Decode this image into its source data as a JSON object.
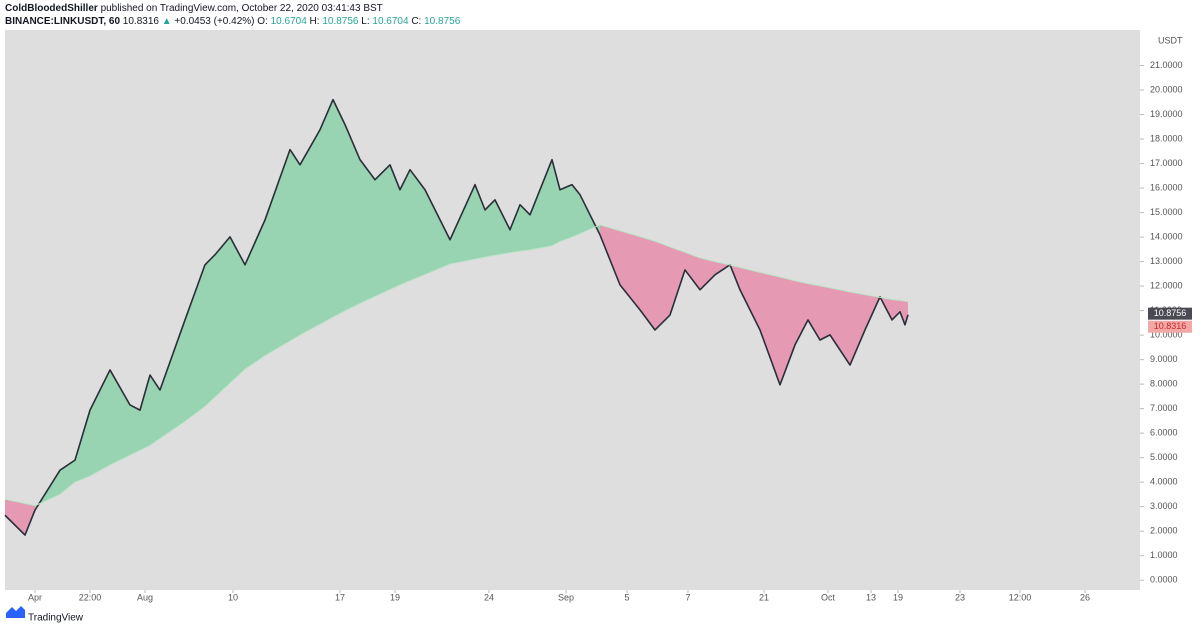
{
  "header": {
    "author": "ColdBloodedShiller",
    "published": "published on TradingView.com, October 22, 2020 03:41:43 BST",
    "footer": "TradingView"
  },
  "chart_data": {
    "type": "line",
    "symbol": "BINANCE:LINKUSDT, 60",
    "last": 10.8316,
    "change": "+0.0453 (+0.42%)",
    "ohlc": [
      {
        "label": "O:",
        "value": 10.6704
      },
      {
        "label": "H:",
        "value": 10.8756
      },
      {
        "label": "L:",
        "value": 10.6704
      },
      {
        "label": "C:",
        "value": 10.8756
      }
    ],
    "y_label": "USDT",
    "x": [
      0,
      20,
      30,
      55,
      70,
      85,
      105,
      125,
      135,
      145,
      155,
      180,
      200,
      210,
      225,
      240,
      260,
      285,
      295,
      315,
      328,
      340,
      355,
      370,
      385,
      395,
      405,
      420,
      445,
      470,
      480,
      490,
      505,
      515,
      525,
      547,
      555,
      567,
      575,
      595,
      615,
      635,
      650,
      665,
      680,
      695,
      710,
      725,
      735,
      755,
      775,
      790,
      803,
      815,
      825,
      845,
      860,
      875,
      887,
      895,
      900,
      903
    ],
    "series": [
      {
        "color": "#2a2e39",
        "values": [
          2.65,
          1.84,
          2.86,
          4.49,
          4.9,
          6.94,
          8.58,
          7.15,
          6.94,
          8.37,
          7.76,
          10.62,
          12.87,
          13.28,
          14.01,
          12.87,
          14.7,
          17.57,
          16.95,
          18.38,
          19.61,
          18.59,
          17.16,
          16.34,
          16.95,
          15.93,
          16.75,
          15.93,
          13.89,
          16.14,
          15.11,
          15.52,
          14.3,
          15.32,
          14.91,
          17.16,
          15.93,
          16.14,
          15.73,
          14.09,
          12.05,
          11.03,
          10.21,
          10.82,
          12.66,
          11.85,
          12.46,
          12.87,
          11.85,
          10.21,
          7.97,
          9.6,
          10.62,
          9.8,
          10.01,
          8.78,
          10.21,
          11.56,
          10.62,
          10.95,
          10.42,
          10.83
        ]
      },
      {
        "color": "#b9e3c6",
        "values": [
          3.3,
          3.13,
          3.04,
          3.5,
          4.0,
          4.25,
          4.7,
          5.1,
          5.3,
          5.5,
          5.78,
          6.48,
          7.09,
          7.47,
          8.04,
          8.61,
          9.16,
          9.76,
          10.0,
          10.44,
          10.73,
          10.99,
          11.29,
          11.58,
          11.86,
          12.05,
          12.22,
          12.47,
          12.9,
          13.1,
          13.18,
          13.26,
          13.36,
          13.42,
          13.48,
          13.64,
          13.82,
          14.0,
          14.14,
          14.5,
          14.26,
          14.02,
          13.83,
          13.6,
          13.38,
          13.15,
          13.0,
          12.86,
          12.76,
          12.56,
          12.37,
          12.22,
          12.1,
          12.01,
          11.93,
          11.76,
          11.65,
          11.54,
          11.45,
          11.42,
          11.38,
          11.36
        ]
      }
    ],
    "fill_above": "#43c77a",
    "fill_below": "#f0457f",
    "xlim": [
      0,
      1135
    ],
    "xticks": [
      {
        "value": 30,
        "label": "Apr"
      },
      {
        "value": 85,
        "label": "22:00"
      },
      {
        "value": 140,
        "label": "Aug"
      },
      {
        "value": 228,
        "label": "10"
      },
      {
        "value": 335,
        "label": "17"
      },
      {
        "value": 390,
        "label": "19"
      },
      {
        "value": 484,
        "label": "24"
      },
      {
        "value": 561,
        "label": "Sep"
      },
      {
        "value": 622,
        "label": "5"
      },
      {
        "value": 683,
        "label": "7"
      },
      {
        "value": 759,
        "label": "21"
      },
      {
        "value": 823,
        "label": "Oct"
      },
      {
        "value": 866,
        "label": "13"
      },
      {
        "value": 893,
        "label": "19"
      },
      {
        "value": 955,
        "label": "23"
      },
      {
        "value": 1015,
        "label": "12:00"
      },
      {
        "value": 1080,
        "label": "26"
      }
    ],
    "ylim": [
      -0.4,
      22.45
    ],
    "yticks": [
      {
        "value": 0,
        "label": "0.0000"
      },
      {
        "value": 1,
        "label": "1.0000"
      },
      {
        "value": 2,
        "label": "2.0000"
      },
      {
        "value": 3,
        "label": "3.0000"
      },
      {
        "value": 4,
        "label": "4.0000"
      },
      {
        "value": 5,
        "label": "5.0000"
      },
      {
        "value": 6,
        "label": "6.0000"
      },
      {
        "value": 7,
        "label": "7.0000"
      },
      {
        "value": 8,
        "label": "8.0000"
      },
      {
        "value": 9,
        "label": "9.0000"
      },
      {
        "value": 10,
        "label": "10.0000"
      },
      {
        "value": 11,
        "label": "11.0000"
      },
      {
        "value": 12,
        "label": "12.0000"
      },
      {
        "value": 13,
        "label": "13.0000"
      },
      {
        "value": 14,
        "label": "14.0000"
      },
      {
        "value": 15,
        "label": "15.0000"
      },
      {
        "value": 16,
        "label": "16.0000"
      },
      {
        "value": 17,
        "label": "17.0000"
      },
      {
        "value": 18,
        "label": "18.0000"
      },
      {
        "value": 19,
        "label": "19.0000"
      },
      {
        "value": 20,
        "label": "20.0000"
      },
      {
        "value": 21,
        "label": "21.0000"
      }
    ]
  }
}
